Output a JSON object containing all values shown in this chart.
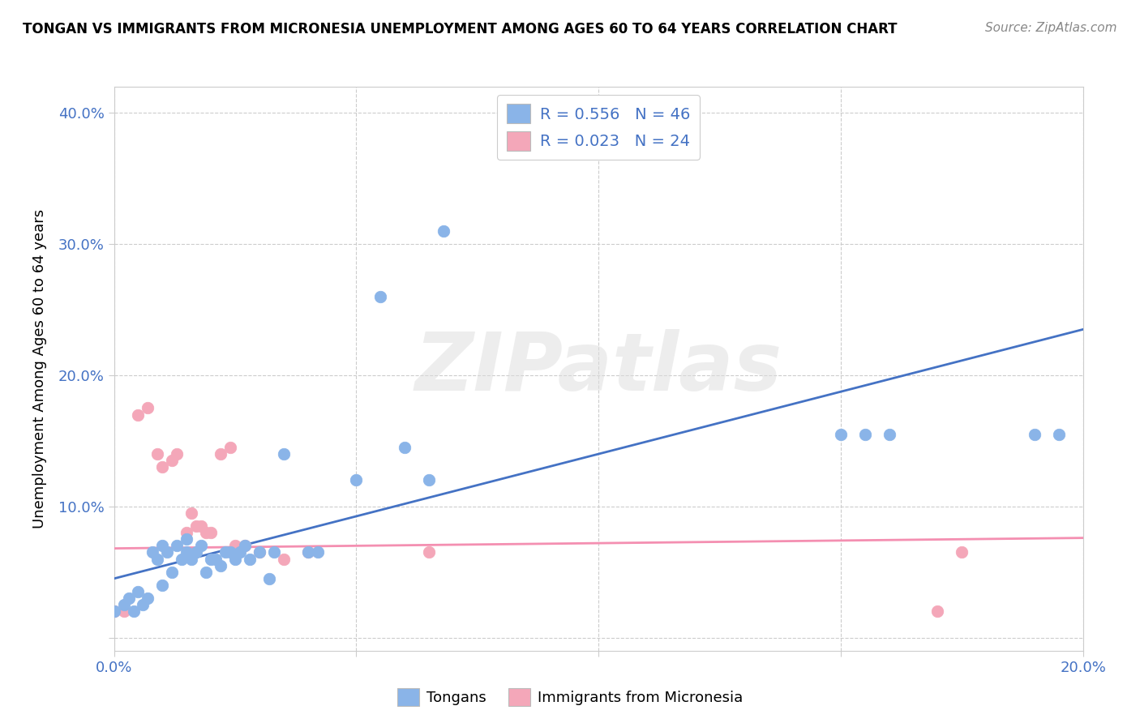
{
  "title": "TONGAN VS IMMIGRANTS FROM MICRONESIA UNEMPLOYMENT AMONG AGES 60 TO 64 YEARS CORRELATION CHART",
  "source": "Source: ZipAtlas.com",
  "ylabel": "Unemployment Among Ages 60 to 64 years",
  "xlim": [
    0.0,
    0.2
  ],
  "ylim": [
    -0.01,
    0.42
  ],
  "xticks": [
    0.0,
    0.05,
    0.1,
    0.15,
    0.2
  ],
  "yticks": [
    0.0,
    0.1,
    0.2,
    0.3,
    0.4
  ],
  "xtick_labels": [
    "0.0%",
    "",
    "",
    "",
    "20.0%"
  ],
  "ytick_labels": [
    "",
    "10.0%",
    "20.0%",
    "30.0%",
    "40.0%"
  ],
  "tongan_R": 0.556,
  "tongan_N": 46,
  "micronesia_R": 0.023,
  "micronesia_N": 24,
  "tongan_color": "#8ab4e8",
  "micronesia_color": "#f4a7b9",
  "tongan_line_color": "#4472c4",
  "micronesia_line_color": "#f48fb1",
  "watermark": "ZIPatlas",
  "legend_text_color": "#4472c4",
  "tongan_x": [
    0.0,
    0.002,
    0.003,
    0.004,
    0.005,
    0.006,
    0.007,
    0.008,
    0.009,
    0.01,
    0.01,
    0.011,
    0.012,
    0.013,
    0.014,
    0.015,
    0.015,
    0.016,
    0.017,
    0.018,
    0.019,
    0.02,
    0.021,
    0.022,
    0.023,
    0.024,
    0.025,
    0.026,
    0.027,
    0.028,
    0.03,
    0.032,
    0.033,
    0.035,
    0.04,
    0.042,
    0.05,
    0.055,
    0.06,
    0.065,
    0.068,
    0.15,
    0.155,
    0.16,
    0.19,
    0.195
  ],
  "tongan_y": [
    0.02,
    0.025,
    0.03,
    0.02,
    0.035,
    0.025,
    0.03,
    0.065,
    0.06,
    0.04,
    0.07,
    0.065,
    0.05,
    0.07,
    0.06,
    0.065,
    0.075,
    0.06,
    0.065,
    0.07,
    0.05,
    0.06,
    0.06,
    0.055,
    0.065,
    0.065,
    0.06,
    0.065,
    0.07,
    0.06,
    0.065,
    0.045,
    0.065,
    0.14,
    0.065,
    0.065,
    0.12,
    0.26,
    0.145,
    0.12,
    0.31,
    0.155,
    0.155,
    0.155,
    0.155,
    0.155
  ],
  "micronesia_x": [
    0.0,
    0.002,
    0.005,
    0.007,
    0.009,
    0.01,
    0.012,
    0.013,
    0.015,
    0.016,
    0.017,
    0.018,
    0.019,
    0.02,
    0.022,
    0.024,
    0.025,
    0.027,
    0.03,
    0.035,
    0.04,
    0.065,
    0.17,
    0.175
  ],
  "micronesia_y": [
    0.02,
    0.02,
    0.17,
    0.175,
    0.14,
    0.13,
    0.135,
    0.14,
    0.08,
    0.095,
    0.085,
    0.085,
    0.08,
    0.08,
    0.14,
    0.145,
    0.07,
    0.07,
    0.065,
    0.06,
    0.065,
    0.065,
    0.02,
    0.065
  ],
  "tongan_line_x": [
    0.0,
    0.2
  ],
  "tongan_line_y": [
    0.045,
    0.235
  ],
  "micronesia_line_x": [
    0.0,
    0.2
  ],
  "micronesia_line_y": [
    0.068,
    0.076
  ]
}
